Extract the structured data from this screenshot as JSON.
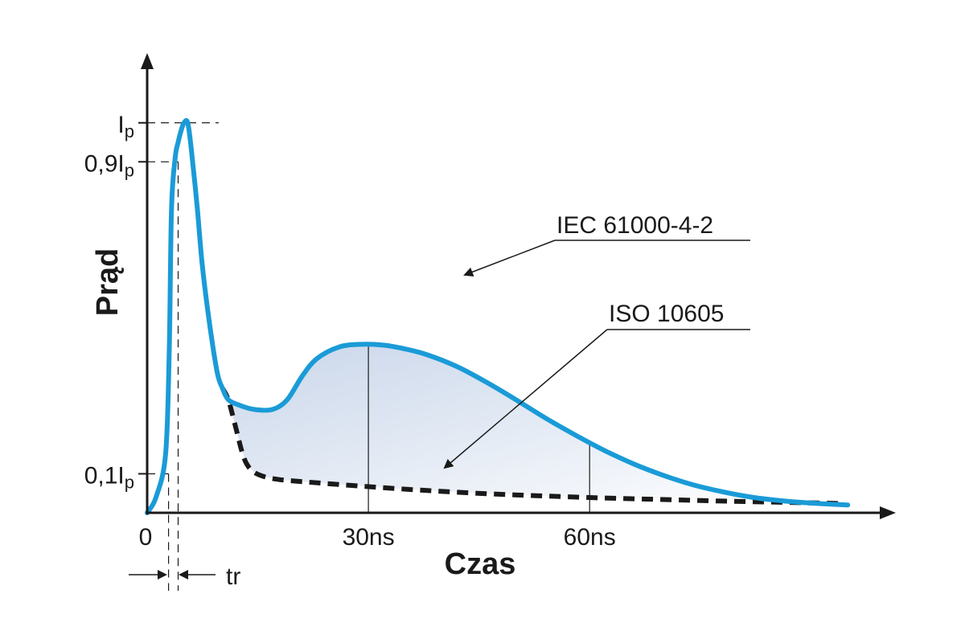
{
  "chart_data": {
    "type": "line",
    "xlabel": "Czas",
    "ylabel": "Prąd",
    "x_ticks": [
      {
        "value": 0,
        "label": "0"
      },
      {
        "value": 30,
        "label": "30ns"
      },
      {
        "value": 60,
        "label": "60ns"
      }
    ],
    "y_ticks": [
      {
        "value": 0.1,
        "main": "0,1I",
        "sub": "p"
      },
      {
        "value": 0.9,
        "main": "0,9I",
        "sub": "p"
      },
      {
        "value": 1.0,
        "main": "I",
        "sub": "p"
      }
    ],
    "rise_time_label": "tr",
    "xlim": [
      0,
      100
    ],
    "ylim": [
      0,
      1.15
    ],
    "series": [
      {
        "name": "IEC 61000-4-2",
        "color": "#1a9bd7",
        "style": "solid",
        "x": [
          0,
          1.2,
          2.5,
          3.0,
          3.3,
          3.8,
          4.2,
          4.6,
          5.0,
          5.5,
          6.0,
          6.8,
          7.5,
          8.5,
          9.5,
          10.2,
          11.0,
          12.5,
          14.5,
          17.0,
          19.0,
          21.0,
          23.0,
          26.0,
          29.0,
          32.0,
          35.0,
          38.0,
          42.0,
          46.0,
          50.0,
          54.0,
          58.0,
          62.0,
          66.0,
          70.0,
          74.0,
          78.0,
          82.0,
          86.0,
          90.0,
          95.0
        ],
        "y": [
          0.0,
          0.04,
          0.15,
          0.42,
          0.78,
          0.91,
          0.95,
          0.98,
          1.0,
          1.0,
          0.93,
          0.78,
          0.63,
          0.48,
          0.36,
          0.32,
          0.29,
          0.276,
          0.265,
          0.265,
          0.29,
          0.35,
          0.395,
          0.425,
          0.432,
          0.43,
          0.42,
          0.405,
          0.375,
          0.335,
          0.29,
          0.243,
          0.2,
          0.16,
          0.125,
          0.096,
          0.072,
          0.054,
          0.04,
          0.031,
          0.025,
          0.02
        ]
      },
      {
        "name": "ISO 10605",
        "color": "#1a1a1a",
        "style": "dashed",
        "x": [
          10.2,
          11.0,
          12.0,
          12.8,
          13.5,
          14.5,
          16.0,
          18.0,
          21.0,
          25.0,
          30.0,
          38.0,
          46.0,
          54.0,
          62.0,
          70.0,
          78.0,
          86.0,
          94.0
        ],
        "y": [
          0.32,
          0.29,
          0.22,
          0.16,
          0.125,
          0.104,
          0.092,
          0.085,
          0.08,
          0.074,
          0.067,
          0.057,
          0.049,
          0.043,
          0.038,
          0.034,
          0.03,
          0.027,
          0.024
        ]
      }
    ]
  }
}
